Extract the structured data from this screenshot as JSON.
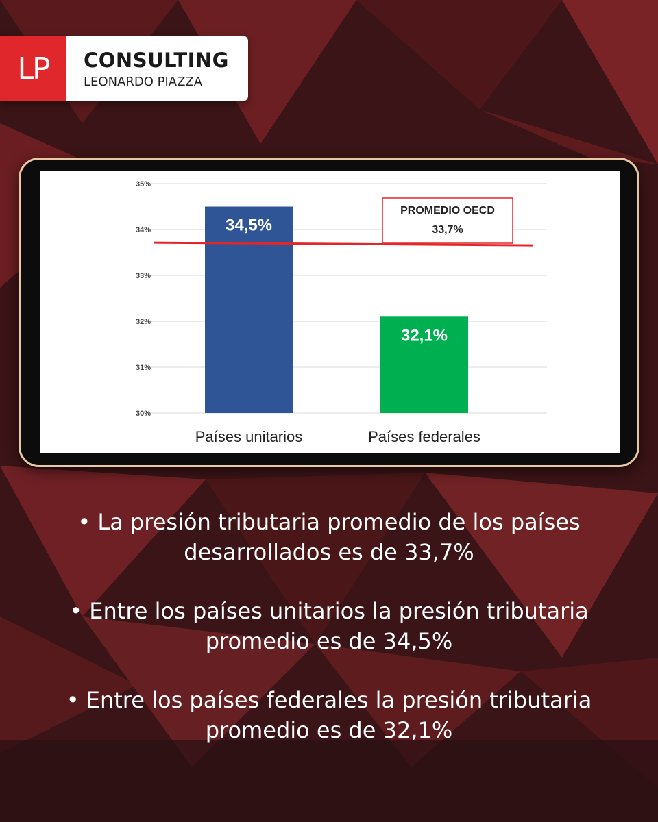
{
  "logo": {
    "mark": "LP",
    "name": "CONSULTING",
    "sub": "LEONARDO PIAZZA"
  },
  "colors": {
    "background": "#3a1416",
    "accent": "#e0272b",
    "bar_unitarios": "#2f5597",
    "bar_federales": "#00b050",
    "average_line": "#e3262b"
  },
  "chart_data": {
    "type": "bar",
    "categories": [
      "Países unitarios",
      "Países federales"
    ],
    "values": [
      34.5,
      32.1
    ],
    "value_labels": [
      "34,5%",
      "32,1%"
    ],
    "yticks": [
      "30%",
      "31%",
      "32%",
      "33%",
      "34%",
      "35%"
    ],
    "ylim": [
      30,
      35
    ],
    "reference_line": {
      "value": 33.7,
      "label_title": "PROMEDIO OECD",
      "label_value": "33,7%"
    },
    "grid": true
  },
  "bullets": [
    {
      "text": "La presión tributaria promedio de los países desarrollados es de 33,7%"
    },
    {
      "text": "Entre los países unitarios la presión tributaria promedio es de 34,5%"
    },
    {
      "text": "Entre los países federales la presión tributaria promedio es de 32,1%"
    }
  ]
}
